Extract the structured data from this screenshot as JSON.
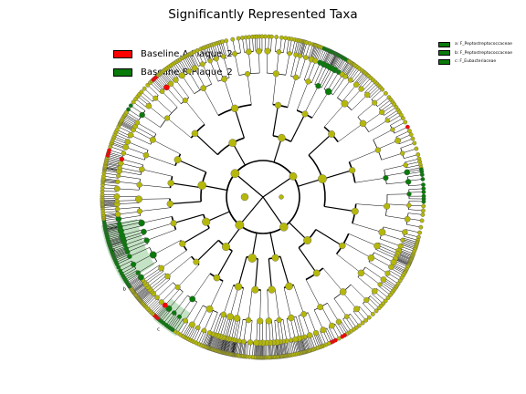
{
  "chart_data": {
    "type": "cladogram",
    "title": "Significantly Represented Taxa",
    "legend": {
      "placement": "top-left",
      "entries": [
        {
          "name": "Baseline.A.Plaque_2",
          "color": "#ff0000"
        },
        {
          "name": "Baseline.B.Plaque_2",
          "color": "#0a7a0a"
        }
      ]
    },
    "clade_legend": {
      "placement": "top-right",
      "entries": [
        {
          "label": "a: F_Peptostreptococcaceae",
          "color": "#0a7a0a"
        },
        {
          "label": "b: F_Peptostreptococcaceae",
          "color": "#0a7a0a"
        },
        {
          "label": "c: F_Eubacteriaceae",
          "color": "#0a7a0a"
        }
      ]
    },
    "clade_labels": [
      "a",
      "b",
      "c"
    ],
    "levels": 6,
    "node_colors": {
      "neutral": "#b5b80a",
      "group_a": "#ff0000",
      "group_b": "#0a7a0a"
    },
    "highlighted_clade_color": "#7dbf7d"
  }
}
